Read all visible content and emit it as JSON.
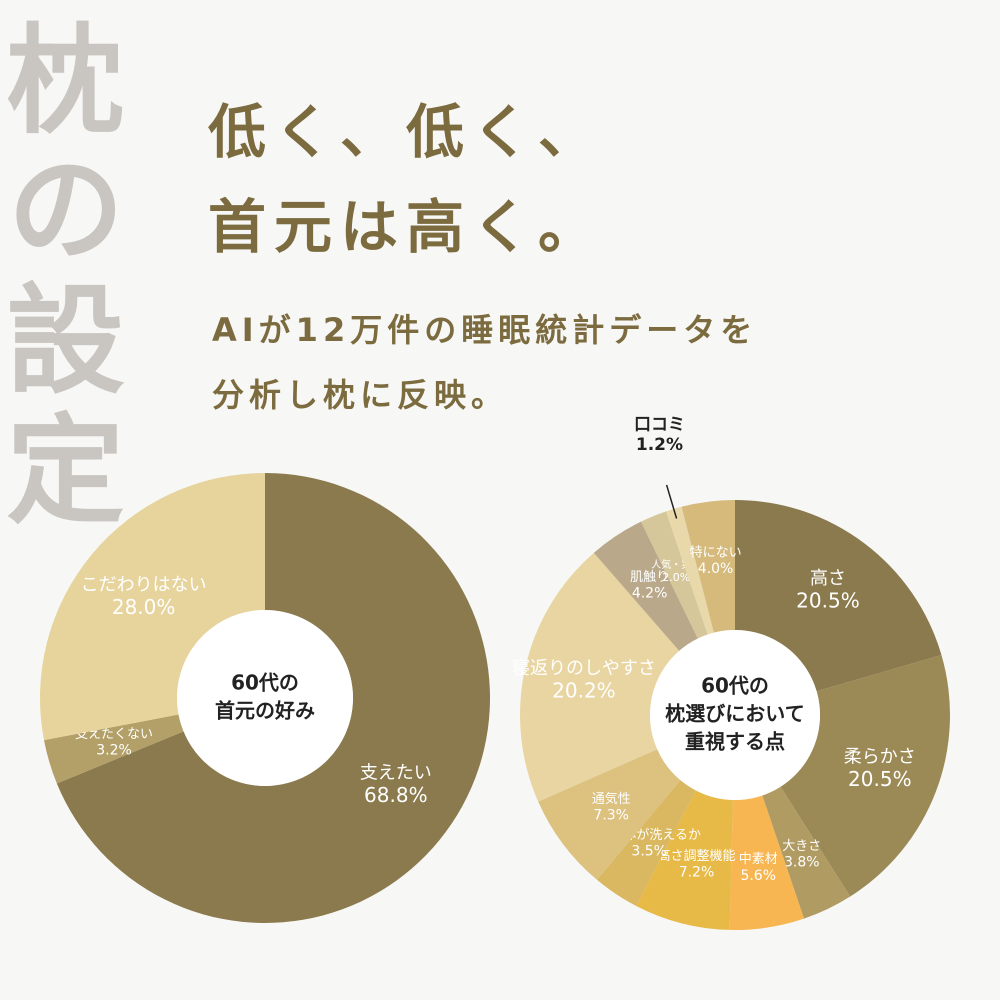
{
  "vertical_title": "枕の設定",
  "headline": [
    "低く、低く、",
    "首元は高く。"
  ],
  "subheadline": [
    "AIが12万件の睡眠統計データを",
    "分析し枕に反映。"
  ],
  "chart_data": [
    {
      "type": "donut",
      "center_text": [
        "60代の",
        "首元の好み"
      ],
      "categories": [
        "支えたい",
        "支えたくない",
        "こだわりはない"
      ],
      "values": [
        68.8,
        3.2,
        28.0
      ],
      "value_labels": [
        "68.8%",
        "3.2%",
        "28.0%"
      ],
      "colors": [
        "#8a7a4d",
        "#b3a068",
        "#e7d49c"
      ]
    },
    {
      "type": "donut",
      "center_text": [
        "60代の",
        "枕選びにおいて",
        "重視する点"
      ],
      "categories": [
        "高さ",
        "柔らかさ",
        "大きさ",
        "中素材",
        "高さ調整機能",
        "枕本体が洗えるか",
        "通気性",
        "寝返りのしやすさ",
        "肌触り",
        "人気・実績",
        "口コミ",
        "特にない"
      ],
      "values": [
        20.5,
        20.5,
        3.8,
        5.6,
        7.2,
        3.5,
        7.3,
        20.2,
        4.2,
        2.0,
        1.2,
        4.0
      ],
      "value_labels": [
        "20.5%",
        "20.5%",
        "3.8%",
        "5.6%",
        "7.2%",
        "3.5%",
        "7.3%",
        "20.2%",
        "4.2%",
        "2.0%",
        "1.2%",
        "4.0%"
      ],
      "colors": [
        "#8a7a4d",
        "#9b8a56",
        "#b09b62",
        "#f7b652",
        "#e7b947",
        "#dab861",
        "#dcc17f",
        "#e8d5a1",
        "#b9a98a",
        "#d6c79a",
        "#e9d9aa",
        "#d5ba7c"
      ]
    }
  ]
}
